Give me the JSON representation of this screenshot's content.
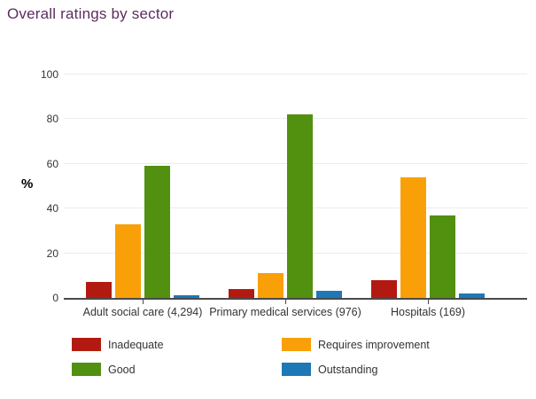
{
  "page": {
    "background_color": "#ffffff",
    "title_color": "#5c2d5e",
    "axis_line_color": "#4a4a4a",
    "gridline_color": "#ececec",
    "text_color": "#333333"
  },
  "chart_data": {
    "type": "bar",
    "title": "Overall ratings by sector",
    "xlabel": "",
    "ylabel": "%",
    "ylim": [
      0,
      100
    ],
    "yticks": [
      0,
      20,
      40,
      60,
      80,
      100
    ],
    "grid": true,
    "legend_position": "bottom",
    "categories": [
      "Adult social care (4,294)",
      "Primary medical services (976)",
      "Hospitals (169)"
    ],
    "series": [
      {
        "name": "Inadequate",
        "color": "#b21a11",
        "values": [
          7,
          4,
          8
        ]
      },
      {
        "name": "Requires improvement",
        "color": "#f9a008",
        "values": [
          33,
          11,
          54
        ]
      },
      {
        "name": "Good",
        "color": "#52900f",
        "values": [
          59,
          82,
          37
        ]
      },
      {
        "name": "Outstanding",
        "color": "#1d78b5",
        "values": [
          1,
          3,
          2
        ]
      }
    ]
  }
}
